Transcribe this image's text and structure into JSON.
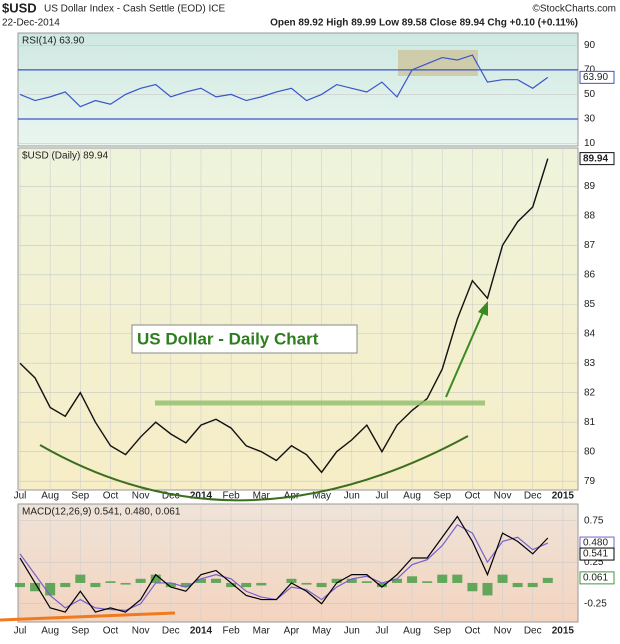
{
  "header": {
    "symbol": "$USD",
    "name": "US Dollar Index - Cash Settle (EOD) ICE",
    "source": "©StockCharts.com",
    "date": "22-Dec-2014",
    "quote": "Open 89.92  High 89.99  Low 89.58  Close 89.94  Chg +0.10 (+0.11%)"
  },
  "chart_data": [
    {
      "type": "line",
      "legend": "RSI(14) 63.90",
      "ylim": [
        8,
        100
      ],
      "yticks": [
        10,
        30,
        50,
        70,
        90
      ],
      "levels": [
        30,
        70
      ],
      "series": [
        {
          "name": "RSI(14)",
          "color": "#3a55c8",
          "values": [
            50,
            45,
            48,
            52,
            40,
            45,
            42,
            50,
            55,
            58,
            48,
            52,
            55,
            48,
            50,
            45,
            48,
            52,
            55,
            45,
            50,
            58,
            55,
            52,
            60,
            48,
            70,
            75,
            80,
            78,
            82,
            60,
            62,
            62,
            55,
            63.9,
            null
          ],
          "value_labels": [
            null,
            null,
            null,
            null,
            null,
            null,
            null,
            null,
            null,
            null,
            null,
            null,
            null,
            null,
            null,
            null,
            null,
            null,
            null,
            null,
            null,
            null,
            null,
            null,
            null,
            null,
            null,
            null,
            null,
            null,
            null,
            null,
            null,
            null,
            null,
            "63.90",
            null
          ]
        }
      ]
    },
    {
      "type": "line",
      "legend": "$USD (Daily) 89.94",
      "annotation": "US Dollar - Daily Chart",
      "ylim": [
        78.7,
        90.3
      ],
      "yticks": [
        79,
        80,
        81,
        82,
        83,
        84,
        85,
        86,
        87,
        88,
        89
      ],
      "categories": [
        "Jul",
        null,
        "Aug",
        null,
        "Sep",
        null,
        "Oct",
        null,
        "Nov",
        null,
        "Dec",
        null,
        "2014",
        null,
        "Feb",
        null,
        "Mar",
        null,
        "Apr",
        null,
        "May",
        null,
        "Jun",
        null,
        "Jul",
        null,
        "Aug",
        null,
        "Sep",
        null,
        "Oct",
        null,
        "Nov",
        null,
        "Dec",
        null,
        "2015"
      ],
      "series": [
        {
          "name": "$USD",
          "color": "#111111",
          "values": [
            83.0,
            82.5,
            81.5,
            81.2,
            82.0,
            81.0,
            80.2,
            79.9,
            80.5,
            81.0,
            80.6,
            80.3,
            80.9,
            81.1,
            80.8,
            80.2,
            80.0,
            79.7,
            80.2,
            79.9,
            79.3,
            80.0,
            80.4,
            80.9,
            80.0,
            80.9,
            81.4,
            81.8,
            82.8,
            84.5,
            85.8,
            85.2,
            87.0,
            87.8,
            88.3,
            89.94,
            null
          ]
        }
      ]
    },
    {
      "type": "line",
      "legend": "MACD(12,26,9) 0.541, 0.480, 0.061",
      "ylim": [
        -0.47,
        0.95
      ],
      "yticks": [
        -0.25,
        0.25,
        0.75
      ],
      "categories": [
        "Jul",
        null,
        "Aug",
        null,
        "Sep",
        null,
        "Oct",
        null,
        "Nov",
        null,
        "Dec",
        null,
        "2014",
        null,
        "Feb",
        null,
        "Mar",
        null,
        "Apr",
        null,
        "May",
        null,
        "Jun",
        null,
        "Jul",
        null,
        "Aug",
        null,
        "Sep",
        null,
        "Oct",
        null,
        "Nov",
        null,
        "Dec",
        null,
        "2015"
      ],
      "series": [
        {
          "name": "MACD",
          "type": "bar",
          "color": "#3f9a3f",
          "values": [
            -0.05,
            -0.1,
            -0.15,
            -0.05,
            0.1,
            -0.05,
            0.02,
            -0.02,
            0.05,
            0.1,
            -0.05,
            -0.05,
            0.05,
            0.05,
            -0.05,
            -0.05,
            -0.03,
            0,
            0.05,
            -0.02,
            -0.05,
            0.05,
            0.05,
            0.02,
            -0.05,
            0.05,
            0.08,
            0.02,
            0.1,
            0.1,
            -0.1,
            -0.15,
            0.1,
            -0.05,
            -0.05,
            0.061,
            null
          ]
        },
        {
          "name": "Signal",
          "color": "#7a5fd0",
          "values": [
            0.35,
            0.1,
            -0.15,
            -0.3,
            -0.2,
            -0.3,
            -0.32,
            -0.33,
            -0.25,
            0.0,
            0.0,
            -0.05,
            0.05,
            0.1,
            0.05,
            -0.1,
            -0.17,
            -0.2,
            -0.05,
            -0.08,
            -0.2,
            -0.05,
            0.05,
            0.08,
            0.0,
            0.05,
            0.22,
            0.28,
            0.45,
            0.7,
            0.6,
            0.25,
            0.5,
            0.55,
            0.4,
            0.48,
            null
          ],
          "value_labels": [
            null,
            null,
            null,
            null,
            null,
            null,
            null,
            null,
            null,
            null,
            null,
            null,
            null,
            null,
            null,
            null,
            null,
            null,
            null,
            null,
            null,
            null,
            null,
            null,
            null,
            null,
            null,
            null,
            null,
            null,
            null,
            null,
            null,
            null,
            null,
            "0.480",
            null
          ]
        },
        {
          "name": "MACD",
          "color": "#000000",
          "values": [
            0.3,
            0.0,
            -0.3,
            -0.35,
            -0.1,
            -0.35,
            -0.3,
            -0.35,
            -0.2,
            0.1,
            -0.05,
            -0.1,
            0.1,
            0.15,
            0.0,
            -0.15,
            -0.2,
            -0.2,
            0.0,
            -0.1,
            -0.25,
            0.0,
            0.1,
            0.1,
            -0.05,
            0.1,
            0.3,
            0.3,
            0.55,
            0.8,
            0.5,
            0.1,
            0.6,
            0.5,
            0.35,
            0.541,
            null
          ]
        }
      ]
    }
  ]
}
